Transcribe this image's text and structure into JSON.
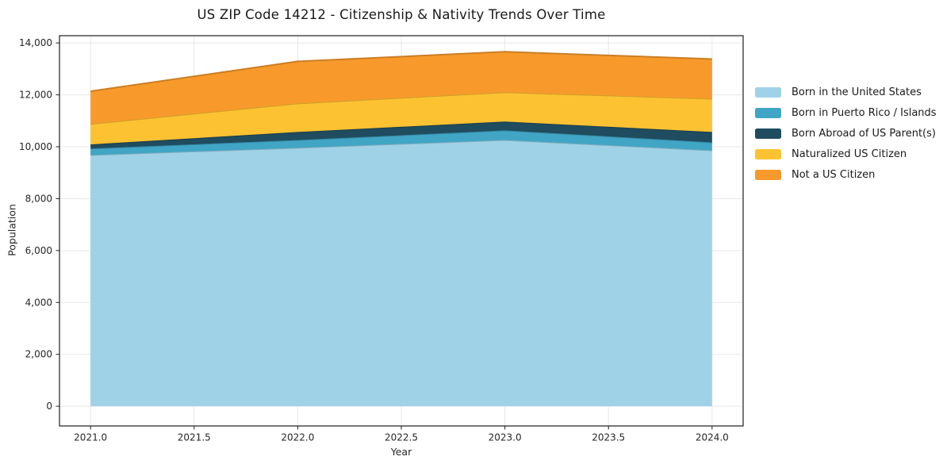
{
  "title": "US ZIP Code 14212 - Citizenship & Nativity Trends Over Time",
  "chart_data": {
    "type": "area",
    "stacked": true,
    "title": "US ZIP Code 14212 - Citizenship & Nativity Trends Over Time",
    "xlabel": "Year",
    "ylabel": "Population",
    "x": [
      2021,
      2022,
      2023,
      2024
    ],
    "series": [
      {
        "name": "Born in the United States",
        "color": "#a0d2e7",
        "values": [
          9680,
          9960,
          10260,
          9860
        ]
      },
      {
        "name": "Born in Puerto Rico / Islands",
        "color": "#41a5c5",
        "values": [
          250,
          300,
          370,
          310
        ]
      },
      {
        "name": "Born Abroad of US Parent(s)",
        "color": "#1f4c5e",
        "values": [
          160,
          310,
          340,
          400
        ]
      },
      {
        "name": "Naturalized US Citizen",
        "color": "#fcc232",
        "values": [
          790,
          1100,
          1130,
          1280
        ]
      },
      {
        "name": "Not a US Citizen",
        "color": "#f89a2b",
        "values": [
          1260,
          1620,
          1560,
          1530
        ]
      }
    ],
    "x_ticks": [
      2021.0,
      2021.5,
      2022.0,
      2022.5,
      2023.0,
      2023.5,
      2024.0
    ],
    "x_tick_labels": [
      "2021.0",
      "2021.5",
      "2022.0",
      "2022.5",
      "2023.0",
      "2023.5",
      "2024.0"
    ],
    "y_ticks": [
      0,
      2000,
      4000,
      6000,
      8000,
      10000,
      12000,
      14000
    ],
    "y_tick_labels": [
      "0",
      "2,000",
      "4,000",
      "6,000",
      "8,000",
      "10,000",
      "12,000",
      "14,000"
    ],
    "xlim": [
      2020.85,
      2024.15
    ],
    "ylim": [
      -760,
      14280
    ],
    "grid": true,
    "grid_color": "#e8e8e8",
    "spine_color": "#1f1f1f",
    "legend_position": "right of axes, no frame"
  }
}
